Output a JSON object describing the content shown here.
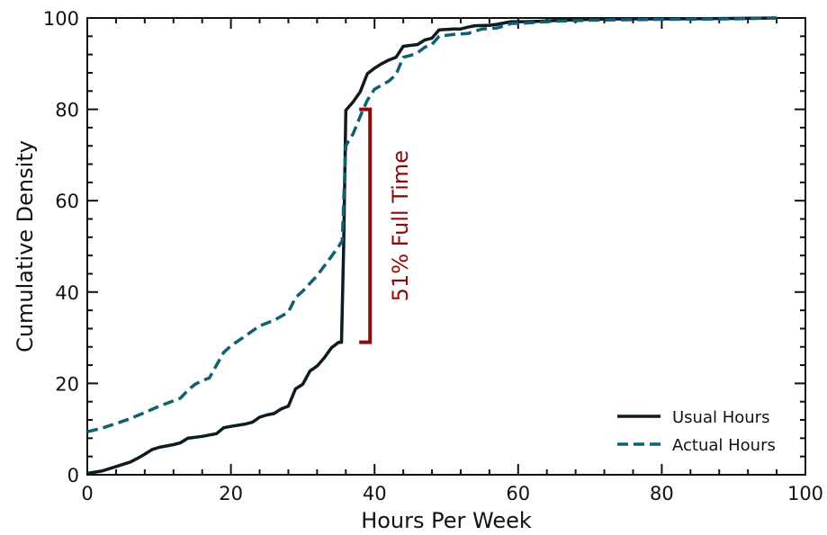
{
  "chart_data": {
    "type": "line",
    "xlabel": "Hours Per Week",
    "ylabel": "Cumulative Density",
    "xlim": [
      0,
      100
    ],
    "ylim": [
      0,
      100
    ],
    "xticks": [
      0,
      20,
      40,
      60,
      80,
      100
    ],
    "yticks": [
      0,
      20,
      40,
      60,
      80,
      100
    ],
    "grid": false,
    "legend_position": "bottom-right",
    "series": [
      {
        "name": "Usual Hours",
        "color": "#0d1b22",
        "style": "solid",
        "points": [
          [
            0,
            0.3
          ],
          [
            2,
            0.8
          ],
          [
            4,
            1.8
          ],
          [
            6,
            2.8
          ],
          [
            7,
            3.6
          ],
          [
            8,
            4.5
          ],
          [
            9,
            5.5
          ],
          [
            10,
            6.0
          ],
          [
            12,
            6.6
          ],
          [
            13,
            7.0
          ],
          [
            14,
            8.0
          ],
          [
            16,
            8.4
          ],
          [
            18,
            9.0
          ],
          [
            19,
            10.3
          ],
          [
            20,
            10.6
          ],
          [
            22,
            11.1
          ],
          [
            23,
            11.5
          ],
          [
            24,
            12.6
          ],
          [
            25,
            13.1
          ],
          [
            26,
            13.4
          ],
          [
            27,
            14.4
          ],
          [
            28,
            15.0
          ],
          [
            29,
            18.8
          ],
          [
            30,
            19.8
          ],
          [
            31,
            22.7
          ],
          [
            32,
            23.8
          ],
          [
            33,
            25.6
          ],
          [
            34,
            27.8
          ],
          [
            35,
            29.0
          ],
          [
            35.4,
            29.0
          ],
          [
            35.7,
            50
          ],
          [
            36,
            79.8
          ],
          [
            37,
            81.6
          ],
          [
            38,
            83.8
          ],
          [
            39,
            87.8
          ],
          [
            40,
            89.0
          ],
          [
            41,
            90.0
          ],
          [
            42,
            90.8
          ],
          [
            43,
            91.4
          ],
          [
            44,
            93.8
          ],
          [
            45,
            94.0
          ],
          [
            46,
            94.2
          ],
          [
            47,
            95.2
          ],
          [
            48,
            95.6
          ],
          [
            49,
            97.4
          ],
          [
            51,
            97.6
          ],
          [
            52,
            97.6
          ],
          [
            53,
            98.0
          ],
          [
            54,
            98.3
          ],
          [
            56,
            98.4
          ],
          [
            57,
            98.6
          ],
          [
            59,
            99.2
          ],
          [
            61,
            99.2
          ],
          [
            63,
            99.3
          ],
          [
            66,
            99.5
          ],
          [
            70,
            99.7
          ],
          [
            75,
            99.8
          ],
          [
            80,
            99.8
          ],
          [
            90,
            99.9
          ],
          [
            96,
            100
          ]
        ]
      },
      {
        "name": "Actual Hours",
        "color": "#10606f",
        "style": "dashed",
        "points": [
          [
            0,
            9.4
          ],
          [
            2,
            10.2
          ],
          [
            4,
            11.2
          ],
          [
            6,
            12.3
          ],
          [
            8,
            13.6
          ],
          [
            10,
            15.0
          ],
          [
            12,
            16.2
          ],
          [
            13,
            16.8
          ],
          [
            14,
            18.5
          ],
          [
            15,
            19.8
          ],
          [
            16,
            20.6
          ],
          [
            17,
            21.2
          ],
          [
            18,
            24.0
          ],
          [
            19,
            26.8
          ],
          [
            20,
            28.2
          ],
          [
            22,
            30.4
          ],
          [
            24,
            32.6
          ],
          [
            26,
            33.8
          ],
          [
            28,
            35.6
          ],
          [
            29,
            38.8
          ],
          [
            30,
            40.2
          ],
          [
            32,
            43.6
          ],
          [
            34,
            47.8
          ],
          [
            35,
            50.0
          ],
          [
            35.5,
            51.2
          ],
          [
            36,
            72.0
          ],
          [
            37,
            74.6
          ],
          [
            38,
            78.4
          ],
          [
            39,
            82.0
          ],
          [
            40,
            84.4
          ],
          [
            42,
            86.2
          ],
          [
            43,
            87.6
          ],
          [
            44,
            91.4
          ],
          [
            45,
            91.8
          ],
          [
            46,
            92.4
          ],
          [
            47,
            93.6
          ],
          [
            48,
            94.2
          ],
          [
            49,
            96.0
          ],
          [
            51,
            96.4
          ],
          [
            53,
            96.6
          ],
          [
            55,
            97.6
          ],
          [
            57,
            97.8
          ],
          [
            58,
            98.2
          ],
          [
            59,
            98.8
          ],
          [
            61,
            98.9
          ],
          [
            63,
            99.1
          ],
          [
            65,
            99.3
          ],
          [
            70,
            99.5
          ],
          [
            75,
            99.6
          ],
          [
            80,
            99.7
          ],
          [
            90,
            99.8
          ],
          [
            96,
            100
          ]
        ]
      }
    ],
    "annotation": {
      "text": "51% Full Time",
      "color": "#8b0a0a",
      "x": 40,
      "y_bottom": 29,
      "y_top": 80
    }
  }
}
